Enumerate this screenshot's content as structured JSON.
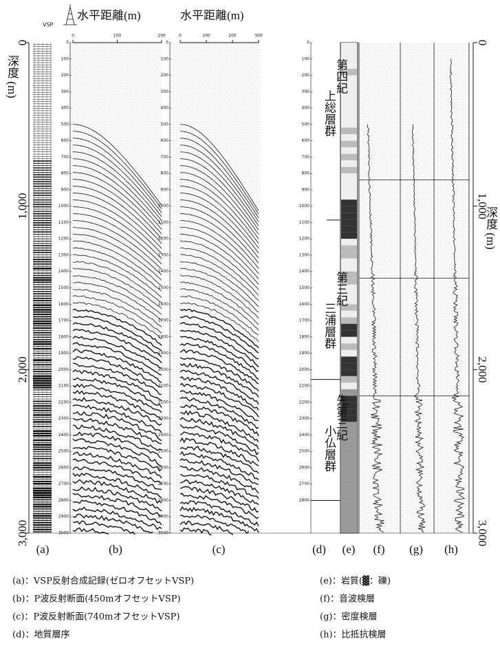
{
  "header": {
    "vsp": "VSP",
    "distance_b": "水平距離(m)",
    "distance_c": "水平距離(m)"
  },
  "axis_b_ticks": [
    0,
    100,
    200
  ],
  "axis_c_ticks": [
    0,
    100,
    200,
    300
  ],
  "depth_axis": {
    "label": "深度 (m)",
    "ticks": [
      0,
      {
        "value": 1000,
        "label": "1,000"
      },
      {
        "value": 2000,
        "label": "2,000"
      },
      {
        "value": 3000,
        "label": "3,000"
      }
    ]
  },
  "fine_depth_ticks": [
    0,
    100,
    200,
    300,
    400,
    500,
    600,
    700,
    800,
    900,
    1000,
    1100,
    1200,
    1300,
    1400,
    1500,
    1600,
    1700,
    1800,
    1900,
    2000,
    2100,
    2200,
    2300,
    2400,
    2500,
    2600,
    2700,
    2800,
    2900,
    3000
  ],
  "strata": [
    {
      "era": "第四紀",
      "group": "上総層群"
    },
    {
      "era": "第三紀",
      "group": "三浦層群"
    },
    {
      "era": "先第三紀",
      "group": "小仏層群"
    }
  ],
  "panel_labels": [
    "(a)",
    "(b)",
    "(c)",
    "(d)",
    "(e)",
    "(f)",
    "(g)",
    "(h)"
  ],
  "legend": {
    "left": [
      "(a)：VSP反射合成記録(ゼロオフセットVSP)",
      "(b)：P波反射断面(450mオフセットVSP)",
      "(c)：P波反射断面(740mオフセットVSP)",
      "(d)：地質層序"
    ],
    "right": [
      "(e)：岩質(▓：礫)",
      "(f)：音波検層",
      "(g)：密度検層",
      "(h)：比抵抗検層"
    ]
  }
}
